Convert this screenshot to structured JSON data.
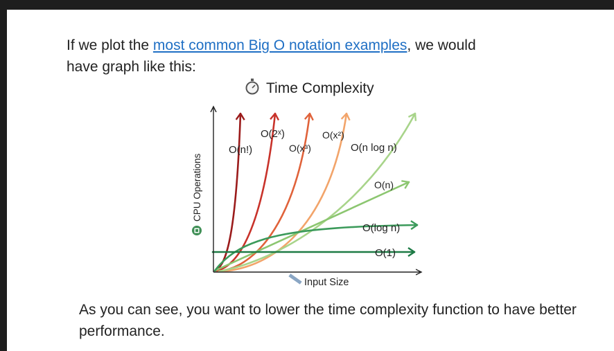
{
  "intro": {
    "before": "If we plot the ",
    "link": "most common Big O notation examples",
    "after": ", we would have graph like this:"
  },
  "outro": "As you can see, you want to lower the time complexity function to have better performance.",
  "chart_data": {
    "type": "line",
    "title": "Time Complexity",
    "xlabel": "Input Size",
    "ylabel": "CPU Operations",
    "grid": false,
    "x_ticks": false,
    "y_ticks": false,
    "title_icon": "stopwatch-icon",
    "xlabel_icon": "ruler-icon",
    "ylabel_icon": "cpu-chip-icon",
    "series": [
      {
        "name": "O(n!)",
        "color": "#9b1b1b"
      },
      {
        "name": "O(2ˣ)",
        "color": "#c8322a"
      },
      {
        "name": "O(x³)",
        "color": "#e0623a"
      },
      {
        "name": "O(x²)",
        "color": "#f2a46a"
      },
      {
        "name": "O(n log n)",
        "color": "#a8d48a"
      },
      {
        "name": "O(n)",
        "color": "#8cc670"
      },
      {
        "name": "O(log n)",
        "color": "#3b9a5a"
      },
      {
        "name": "O(1)",
        "color": "#1d7a45"
      }
    ]
  }
}
